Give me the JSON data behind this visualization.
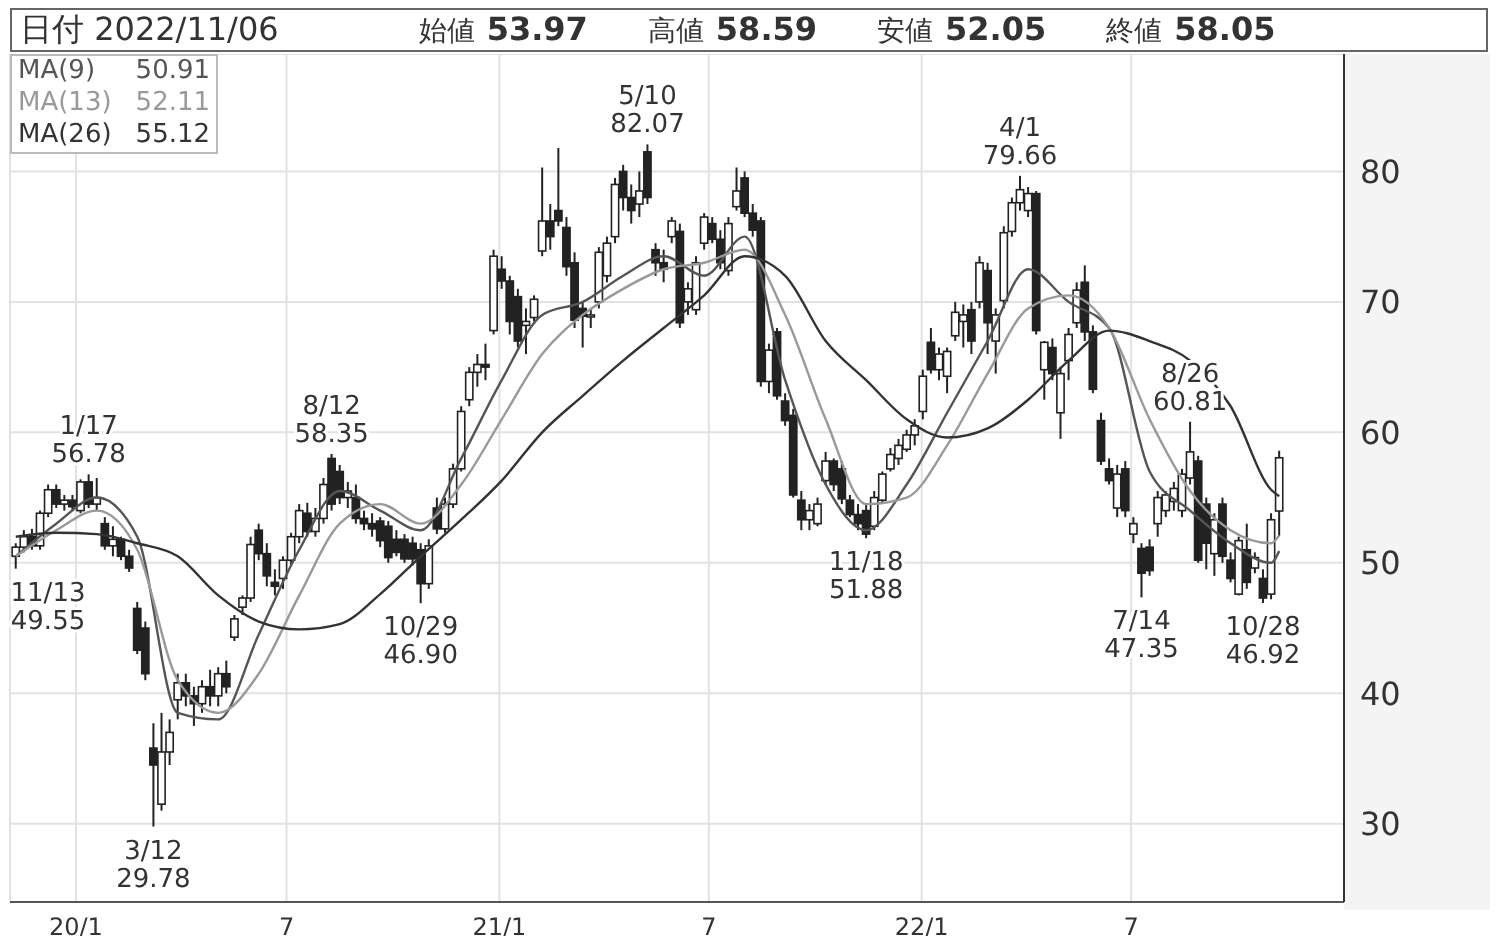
{
  "chart_data": {
    "type": "candlestick",
    "title": "日付 2022/11/06",
    "annotations": [
      "始値 53.97",
      "高値 58.59",
      "安値 52.05",
      "終値 58.05",
      {
        "text": "11/13\n49.55",
        "x": "2019-11-10",
        "y": 49.55
      },
      {
        "text": "1/17\n56.78",
        "x": "2020-01-12",
        "y": 56.78
      },
      {
        "text": "3/12\n29.78",
        "x": "2020-03-08",
        "y": 29.78
      },
      {
        "text": "8/12\n58.35",
        "x": "2020-08-09",
        "y": 58.35
      },
      {
        "text": "10/29\n46.90",
        "x": "2020-10-25",
        "y": 46.9
      },
      {
        "text": "5/10\n82.07",
        "x": "2021-05-09",
        "y": 82.07
      },
      {
        "text": "11/18\n51.88",
        "x": "2021-11-14",
        "y": 51.88
      },
      {
        "text": "4/1\n79.66",
        "x": "2022-03-27",
        "y": 79.66
      },
      {
        "text": "7/14\n47.35",
        "x": "2022-07-10",
        "y": 47.35
      },
      {
        "text": "8/26\n60.81",
        "x": "2022-08-21",
        "y": 60.81
      },
      {
        "text": "10/28\n46.92",
        "x": "2022-10-23",
        "y": 46.92
      }
    ],
    "x": [
      "2019-11-10",
      "2019-11-17",
      "2019-11-24",
      "2019-12-01",
      "2019-12-08",
      "2019-12-15",
      "2019-12-22",
      "2019-12-29",
      "2020-01-05",
      "2020-01-12",
      "2020-01-19",
      "2020-01-26",
      "2020-02-02",
      "2020-02-09",
      "2020-02-16",
      "2020-02-23",
      "2020-03-01",
      "2020-03-08",
      "2020-03-15",
      "2020-03-22",
      "2020-03-29",
      "2020-04-05",
      "2020-04-12",
      "2020-04-19",
      "2020-04-26",
      "2020-05-03",
      "2020-05-10",
      "2020-05-17",
      "2020-05-24",
      "2020-05-31",
      "2020-06-07",
      "2020-06-14",
      "2020-06-21",
      "2020-06-28",
      "2020-07-05",
      "2020-07-12",
      "2020-07-19",
      "2020-07-26",
      "2020-08-02",
      "2020-08-09",
      "2020-08-16",
      "2020-08-23",
      "2020-08-30",
      "2020-09-06",
      "2020-09-13",
      "2020-09-20",
      "2020-09-27",
      "2020-10-04",
      "2020-10-11",
      "2020-10-18",
      "2020-10-25",
      "2020-11-01",
      "2020-11-08",
      "2020-11-15",
      "2020-11-22",
      "2020-11-29",
      "2020-12-06",
      "2020-12-13",
      "2020-12-20",
      "2020-12-27",
      "2021-01-03",
      "2021-01-10",
      "2021-01-17",
      "2021-01-24",
      "2021-01-31",
      "2021-02-07",
      "2021-02-14",
      "2021-02-21",
      "2021-02-28",
      "2021-03-07",
      "2021-03-14",
      "2021-03-21",
      "2021-03-28",
      "2021-04-04",
      "2021-04-11",
      "2021-04-18",
      "2021-04-25",
      "2021-05-02",
      "2021-05-09",
      "2021-05-16",
      "2021-05-23",
      "2021-05-30",
      "2021-06-06",
      "2021-06-13",
      "2021-06-20",
      "2021-06-27",
      "2021-07-04",
      "2021-07-11",
      "2021-07-18",
      "2021-07-25",
      "2021-08-01",
      "2021-08-08",
      "2021-08-15",
      "2021-08-22",
      "2021-08-29",
      "2021-09-05",
      "2021-09-12",
      "2021-09-19",
      "2021-09-26",
      "2021-10-03",
      "2021-10-10",
      "2021-10-17",
      "2021-10-24",
      "2021-10-31",
      "2021-11-07",
      "2021-11-14",
      "2021-11-21",
      "2021-11-28",
      "2021-12-05",
      "2021-12-12",
      "2021-12-19",
      "2021-12-26",
      "2022-01-02",
      "2022-01-09",
      "2022-01-16",
      "2022-01-23",
      "2022-01-30",
      "2022-02-06",
      "2022-02-13",
      "2022-02-20",
      "2022-02-27",
      "2022-03-06",
      "2022-03-13",
      "2022-03-20",
      "2022-03-27",
      "2022-04-03",
      "2022-04-10",
      "2022-04-17",
      "2022-04-24",
      "2022-05-01",
      "2022-05-08",
      "2022-05-15",
      "2022-05-22",
      "2022-05-29",
      "2022-06-05",
      "2022-06-12",
      "2022-06-19",
      "2022-06-26",
      "2022-07-03",
      "2022-07-10",
      "2022-07-17",
      "2022-07-24",
      "2022-07-31",
      "2022-08-07",
      "2022-08-14",
      "2022-08-21",
      "2022-08-28",
      "2022-09-04",
      "2022-09-11",
      "2022-09-18",
      "2022-09-25",
      "2022-10-02",
      "2022-10-09",
      "2022-10-16",
      "2022-10-23",
      "2022-10-30",
      "2022-11-06"
    ],
    "ohlc": [
      [
        50.5,
        51.5,
        49.55,
        51.2
      ],
      [
        51.2,
        52.5,
        50.8,
        52.0
      ],
      [
        52.0,
        52.6,
        51.0,
        51.3
      ],
      [
        51.3,
        54.0,
        51.0,
        53.8
      ],
      [
        53.8,
        56.0,
        53.5,
        55.6
      ],
      [
        55.6,
        56.0,
        54.2,
        54.5
      ],
      [
        54.5,
        55.2,
        54.0,
        54.8
      ],
      [
        54.8,
        55.2,
        54.0,
        54.3
      ],
      [
        54.0,
        56.4,
        53.8,
        56.2
      ],
      [
        56.2,
        56.78,
        54.2,
        54.5
      ],
      [
        54.5,
        56.5,
        54.0,
        55.0
      ],
      [
        53.0,
        53.5,
        51.0,
        51.3
      ],
      [
        51.3,
        52.8,
        50.5,
        51.8
      ],
      [
        51.8,
        52.0,
        50.2,
        50.5
      ],
      [
        50.5,
        51.0,
        49.3,
        49.6
      ],
      [
        46.5,
        47.0,
        43.0,
        43.3
      ],
      [
        45.0,
        45.5,
        41.0,
        41.5
      ],
      [
        35.8,
        37.7,
        29.78,
        34.5
      ],
      [
        31.5,
        38.5,
        31.0,
        35.5
      ],
      [
        35.5,
        38.0,
        34.5,
        37.0
      ],
      [
        39.5,
        41.5,
        38.0,
        40.8
      ],
      [
        40.8,
        41.5,
        39.0,
        39.8
      ],
      [
        39.8,
        40.5,
        37.5,
        39.2
      ],
      [
        39.2,
        41.0,
        38.5,
        40.5
      ],
      [
        40.5,
        41.8,
        39.0,
        39.8
      ],
      [
        39.8,
        42.0,
        39.0,
        41.5
      ],
      [
        41.5,
        42.5,
        40.0,
        40.5
      ],
      [
        44.3,
        46.0,
        44.0,
        45.7
      ],
      [
        46.6,
        47.5,
        46.0,
        47.3
      ],
      [
        47.3,
        52.0,
        47.0,
        51.4
      ],
      [
        52.5,
        53.0,
        50.2,
        50.7
      ],
      [
        50.7,
        51.5,
        48.2,
        49.0
      ],
      [
        48.5,
        49.5,
        47.5,
        48.2
      ],
      [
        48.8,
        50.5,
        48.0,
        50.2
      ],
      [
        50.2,
        52.3,
        49.8,
        52.0
      ],
      [
        52.0,
        54.5,
        51.5,
        54.0
      ],
      [
        53.8,
        54.6,
        52.0,
        52.4
      ],
      [
        52.4,
        54.2,
        52.0,
        53.4
      ],
      [
        53.4,
        56.5,
        53.0,
        56.0
      ],
      [
        58.0,
        58.35,
        54.0,
        54.5
      ],
      [
        57.0,
        57.5,
        54.5,
        55.0
      ],
      [
        55.0,
        56.2,
        54.2,
        55.5
      ],
      [
        55.0,
        56.0,
        53.0,
        53.4
      ],
      [
        53.4,
        54.0,
        52.5,
        53.0
      ],
      [
        53.0,
        53.8,
        52.0,
        52.6
      ],
      [
        53.2,
        53.5,
        51.2,
        51.7
      ],
      [
        52.8,
        53.2,
        50.0,
        50.4
      ],
      [
        51.8,
        52.5,
        50.5,
        50.8
      ],
      [
        51.8,
        52.2,
        50.0,
        50.3
      ],
      [
        51.5,
        52.0,
        49.8,
        50.3
      ],
      [
        51.0,
        51.5,
        46.9,
        48.4
      ],
      [
        48.4,
        51.8,
        48.0,
        51.3
      ],
      [
        54.2,
        55.0,
        52.2,
        52.6
      ],
      [
        52.6,
        55.0,
        52.3,
        54.5
      ],
      [
        54.5,
        57.6,
        54.2,
        57.2
      ],
      [
        57.2,
        62.0,
        57.0,
        61.6
      ],
      [
        62.5,
        65.0,
        62.0,
        64.6
      ],
      [
        64.6,
        66.0,
        63.5,
        65.2
      ],
      [
        65.2,
        66.8,
        64.0,
        65.0
      ],
      [
        67.8,
        74.0,
        67.5,
        73.5
      ],
      [
        72.5,
        73.5,
        71.0,
        71.6
      ],
      [
        71.6,
        72.0,
        67.5,
        68.5
      ],
      [
        70.4,
        71.0,
        66.5,
        67.0
      ],
      [
        68.2,
        69.5,
        66.0,
        68.5
      ],
      [
        68.8,
        70.5,
        68.5,
        70.2
      ],
      [
        73.9,
        80.3,
        73.5,
        76.2
      ],
      [
        76.2,
        77.5,
        74.0,
        75.0
      ],
      [
        77.0,
        81.8,
        75.8,
        76.2
      ],
      [
        75.7,
        76.5,
        72.0,
        72.7
      ],
      [
        73.0,
        73.8,
        68.0,
        68.6
      ],
      [
        69.5,
        70.0,
        66.5,
        68.9
      ],
      [
        68.9,
        69.5,
        68.0,
        69.0
      ],
      [
        70.0,
        74.2,
        69.5,
        73.8
      ],
      [
        72.0,
        75.0,
        71.5,
        74.5
      ],
      [
        75.0,
        79.5,
        74.5,
        79.0
      ],
      [
        80.0,
        80.5,
        77.0,
        78.0
      ],
      [
        78.0,
        79.0,
        76.0,
        77.0
      ],
      [
        77.5,
        80.0,
        76.5,
        78.5
      ],
      [
        81.5,
        82.07,
        77.5,
        78.0
      ],
      [
        74.0,
        74.5,
        72.0,
        73.0
      ],
      [
        73.0,
        74.0,
        71.5,
        72.5
      ],
      [
        75.0,
        76.5,
        74.5,
        76.2
      ],
      [
        75.4,
        76.0,
        68.0,
        68.4
      ],
      [
        70.0,
        71.5,
        69.0,
        71.0
      ],
      [
        69.4,
        73.5,
        69.0,
        73.0
      ],
      [
        74.5,
        76.8,
        74.0,
        76.5
      ],
      [
        76.0,
        76.5,
        74.5,
        74.8
      ],
      [
        74.8,
        75.5,
        72.5,
        73.0
      ],
      [
        72.4,
        76.5,
        72.0,
        76.0
      ],
      [
        77.3,
        80.3,
        77.0,
        78.5
      ],
      [
        79.5,
        80.0,
        76.5,
        76.8
      ],
      [
        76.8,
        77.5,
        75.0,
        75.5
      ],
      [
        76.2,
        76.5,
        63.5,
        63.9
      ],
      [
        63.9,
        66.8,
        63.0,
        66.3
      ],
      [
        67.7,
        68.0,
        62.5,
        62.8
      ],
      [
        62.4,
        63.0,
        60.5,
        60.9
      ],
      [
        61.3,
        61.8,
        55.0,
        55.2
      ],
      [
        54.8,
        55.5,
        52.5,
        53.3
      ],
      [
        53.3,
        54.5,
        52.5,
        54.0
      ],
      [
        53.0,
        55.0,
        52.8,
        54.5
      ],
      [
        56.3,
        58.5,
        56.0,
        57.8
      ],
      [
        57.8,
        58.0,
        55.5,
        56.0
      ],
      [
        57.2,
        57.8,
        54.5,
        54.9
      ],
      [
        54.8,
        55.2,
        53.5,
        53.7
      ],
      [
        53.7,
        54.5,
        52.5,
        53.0
      ],
      [
        54.0,
        54.5,
        51.88,
        52.2
      ],
      [
        52.8,
        55.5,
        52.5,
        55.0
      ],
      [
        54.8,
        57.0,
        54.5,
        56.8
      ],
      [
        57.2,
        58.8,
        57.0,
        58.3
      ],
      [
        58.0,
        59.5,
        57.5,
        59.0
      ],
      [
        58.7,
        60.2,
        58.5,
        59.8
      ],
      [
        59.8,
        61.0,
        59.0,
        60.5
      ],
      [
        61.6,
        64.8,
        61.0,
        64.3
      ],
      [
        66.9,
        68.0,
        64.5,
        64.8
      ],
      [
        64.8,
        66.5,
        64.0,
        66.0
      ],
      [
        64.3,
        66.5,
        63.0,
        66.2
      ],
      [
        67.4,
        70.0,
        67.0,
        69.2
      ],
      [
        68.5,
        69.8,
        66.5,
        69.0
      ],
      [
        69.4,
        70.0,
        66.0,
        67.0
      ],
      [
        70.0,
        73.5,
        69.5,
        73.0
      ],
      [
        72.4,
        73.0,
        66.0,
        68.4
      ],
      [
        67.0,
        69.5,
        64.5,
        69.0
      ],
      [
        70.1,
        75.8,
        69.5,
        75.3
      ],
      [
        75.4,
        78.0,
        75.0,
        77.6
      ],
      [
        77.6,
        79.66,
        77.0,
        78.6
      ],
      [
        77.0,
        78.8,
        76.5,
        78.3
      ],
      [
        78.3,
        78.5,
        67.5,
        67.8
      ],
      [
        64.8,
        67.0,
        62.5,
        66.9
      ],
      [
        66.5,
        67.2,
        64.0,
        64.5
      ],
      [
        61.5,
        65.0,
        59.5,
        64.5
      ],
      [
        65.5,
        68.0,
        64.0,
        67.5
      ],
      [
        68.4,
        71.5,
        68.0,
        70.9
      ],
      [
        71.5,
        72.8,
        67.0,
        67.7
      ],
      [
        67.7,
        68.2,
        63.0,
        63.3
      ],
      [
        60.9,
        61.5,
        57.5,
        57.8
      ],
      [
        57.2,
        58.0,
        56.0,
        56.3
      ],
      [
        54.2,
        57.5,
        53.5,
        56.8
      ],
      [
        57.2,
        57.8,
        53.5,
        54.0
      ],
      [
        52.2,
        53.5,
        51.5,
        53.0
      ],
      [
        51.1,
        51.5,
        47.35,
        49.2
      ],
      [
        51.2,
        51.8,
        49.0,
        49.4
      ],
      [
        53.0,
        55.5,
        52.0,
        55.0
      ],
      [
        54.0,
        55.5,
        53.5,
        55.2
      ],
      [
        54.7,
        56.2,
        54.0,
        55.7
      ],
      [
        54.0,
        57.2,
        53.5,
        56.8
      ],
      [
        56.5,
        60.81,
        56.0,
        58.5
      ],
      [
        57.8,
        58.2,
        50.0,
        50.2
      ],
      [
        54.5,
        55.0,
        49.5,
        51.5
      ],
      [
        50.7,
        53.8,
        49.0,
        53.3
      ],
      [
        54.5,
        55.0,
        50.0,
        50.5
      ],
      [
        50.2,
        50.8,
        48.5,
        48.8
      ],
      [
        47.6,
        52.0,
        47.5,
        51.7
      ],
      [
        51.0,
        53.0,
        48.0,
        48.5
      ],
      [
        49.6,
        50.8,
        49.2,
        50.4
      ],
      [
        48.8,
        49.5,
        46.92,
        47.3
      ],
      [
        47.6,
        53.8,
        47.2,
        53.3
      ],
      [
        53.97,
        58.59,
        52.05,
        58.05
      ]
    ],
    "series": [
      {
        "name": "MA(9) 50.91",
        "type": "line",
        "color": "#555555",
        "x": [
          "2019-11-10",
          "2019-12-15",
          "2020-01-19",
          "2020-02-23",
          "2020-03-29",
          "2020-05-03",
          "2020-06-07",
          "2020-07-12",
          "2020-08-16",
          "2020-09-20",
          "2020-10-25",
          "2020-11-29",
          "2021-01-03",
          "2021-02-07",
          "2021-03-14",
          "2021-04-18",
          "2021-05-23",
          "2021-06-27",
          "2021-08-01",
          "2021-09-05",
          "2021-10-10",
          "2021-11-14",
          "2021-12-19",
          "2022-01-23",
          "2022-02-27",
          "2022-04-03",
          "2022-05-08",
          "2022-06-12",
          "2022-07-17",
          "2022-08-21",
          "2022-09-25",
          "2022-10-30",
          "2022-11-06"
        ],
        "values": [
          50.5,
          53,
          55,
          52,
          38.5,
          38,
          44.5,
          51,
          55.5,
          54,
          52.5,
          58,
          64,
          69,
          70,
          72,
          73.5,
          72,
          75,
          64,
          56,
          52.5,
          56,
          61.5,
          67,
          72.5,
          70,
          68,
          57,
          54,
          51.5,
          50,
          50.9
        ]
      },
      {
        "name": "MA(13) 52.11",
        "type": "line",
        "color": "#999999",
        "x": [
          "2019-11-10",
          "2019-12-15",
          "2020-01-19",
          "2020-02-23",
          "2020-03-29",
          "2020-05-03",
          "2020-06-07",
          "2020-07-12",
          "2020-08-16",
          "2020-09-20",
          "2020-10-25",
          "2020-11-29",
          "2021-01-03",
          "2021-02-07",
          "2021-03-14",
          "2021-04-18",
          "2021-05-23",
          "2021-06-27",
          "2021-08-01",
          "2021-09-05",
          "2021-10-10",
          "2021-11-14",
          "2021-12-19",
          "2022-01-23",
          "2022-02-27",
          "2022-04-03",
          "2022-05-08",
          "2022-06-12",
          "2022-07-17",
          "2022-08-21",
          "2022-09-25",
          "2022-10-30",
          "2022-11-06"
        ],
        "values": [
          50.5,
          52.5,
          54,
          51,
          41,
          38.5,
          41.5,
          47.5,
          53,
          54.5,
          53,
          56,
          61,
          66,
          69,
          71,
          72.5,
          73,
          74,
          69,
          61,
          54.5,
          55,
          59,
          64.5,
          69.5,
          70.5,
          68,
          61,
          55.5,
          52.5,
          51.5,
          52.1
        ]
      },
      {
        "name": "MA(26) 55.12",
        "type": "line",
        "color": "#333333",
        "x": [
          "2019-11-10",
          "2019-12-15",
          "2020-01-19",
          "2020-02-23",
          "2020-03-29",
          "2020-05-03",
          "2020-06-07",
          "2020-07-12",
          "2020-08-16",
          "2020-09-20",
          "2020-10-25",
          "2020-11-29",
          "2021-01-03",
          "2021-02-07",
          "2021-03-14",
          "2021-04-18",
          "2021-05-23",
          "2021-06-27",
          "2021-08-01",
          "2021-09-05",
          "2021-10-10",
          "2021-11-14",
          "2021-12-19",
          "2022-01-23",
          "2022-02-27",
          "2022-04-03",
          "2022-05-08",
          "2022-06-12",
          "2022-07-17",
          "2022-08-21",
          "2022-09-25",
          "2022-10-30",
          "2022-11-06"
        ],
        "values": [
          52,
          52.3,
          52.2,
          51.5,
          50.5,
          47.5,
          45.5,
          44.9,
          45.3,
          47.6,
          50.5,
          53.3,
          56.3,
          60,
          62.8,
          65.5,
          68,
          70.5,
          73.5,
          72,
          67,
          64,
          61,
          59.6,
          60.3,
          62.5,
          65.5,
          67.8,
          67,
          65.5,
          62,
          55.6,
          55.1
        ]
      }
    ],
    "xlim": [
      "2019-11-05",
      "2023-01-01"
    ],
    "xticks": [
      {
        "value": "2020-01-01",
        "label": "20/1"
      },
      {
        "value": "2020-07-01",
        "label": "7"
      },
      {
        "value": "2021-01-01",
        "label": "21/1"
      },
      {
        "value": "2021-07-01",
        "label": "7"
      },
      {
        "value": "2022-01-01",
        "label": "22/1"
      },
      {
        "value": "2022-07-01",
        "label": "7"
      }
    ],
    "ylim": [
      24,
      89
    ],
    "yticks": [
      30,
      40,
      50,
      60,
      70,
      80
    ],
    "grid": true,
    "legend": "top left"
  }
}
